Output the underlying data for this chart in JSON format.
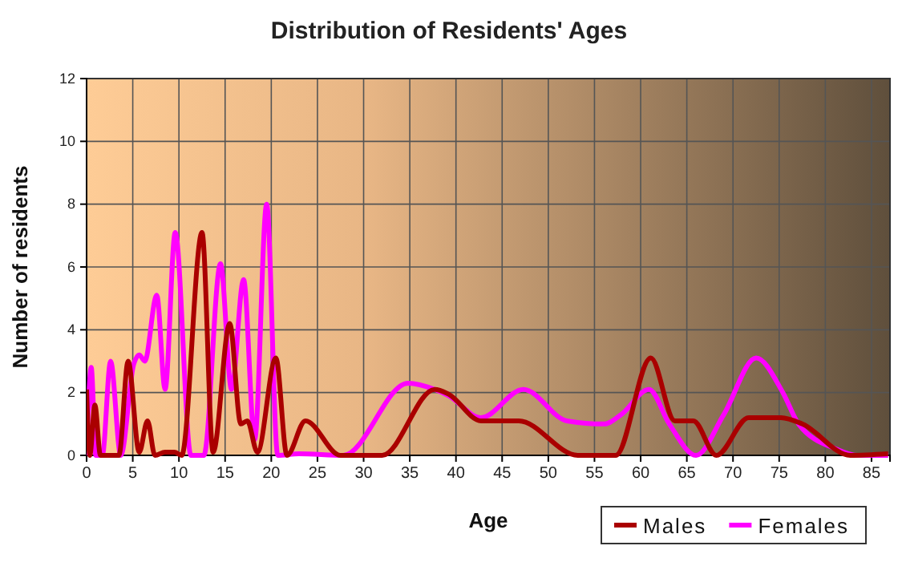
{
  "chart_data": {
    "type": "line",
    "title": "Distribution of Residents' Ages",
    "xlabel": "Age",
    "ylabel": "Number of residents",
    "xlim": [
      0,
      87
    ],
    "xticks": [
      0,
      5,
      10,
      15,
      20,
      25,
      30,
      35,
      40,
      45,
      50,
      55,
      60,
      65,
      70,
      75,
      80,
      85
    ],
    "ylim": [
      0,
      12
    ],
    "yticks": [
      0,
      2,
      4,
      6,
      8,
      10,
      12
    ],
    "grid": true,
    "legend": "bottom right",
    "series": [
      {
        "name": "Males",
        "color": "#aa0000",
        "x": [
          0,
          0.35,
          0.9,
          1.5,
          3.5,
          4.5,
          5.7,
          6.6,
          7.4,
          8.5,
          9.5,
          10.3,
          12.5,
          13.7,
          15.5,
          16.7,
          17.4,
          18.5,
          20.5,
          21.7,
          23.7,
          27.5,
          32,
          37.7,
          39.2,
          42.7,
          46.8,
          53.2,
          57.3,
          61.1,
          63.7,
          65.7,
          68.2,
          71.7,
          75.2,
          77.5,
          82.7,
          86.8
        ],
        "values": [
          2.1,
          0,
          1.6,
          0,
          0,
          3.0,
          0.1,
          1.1,
          0,
          0.1,
          0.1,
          0,
          7.1,
          0.1,
          4.2,
          1.0,
          1.1,
          0.1,
          3.1,
          0,
          1.1,
          0,
          0,
          2.1,
          1.95,
          1.1,
          1.1,
          0,
          0,
          3.1,
          1.1,
          1.1,
          0,
          1.2,
          1.2,
          1.0,
          0,
          0.05
        ]
      },
      {
        "name": "Females",
        "color": "#ff00ff",
        "x": [
          0,
          0.5,
          1,
          1.7,
          2.6,
          3.7,
          5.1,
          5.7,
          6.3,
          7.6,
          8.5,
          9.6,
          11.3,
          12.7,
          14.5,
          15.7,
          17.0,
          18.2,
          19.5,
          20.7,
          23,
          27.8,
          34.8,
          37.7,
          39.2,
          42.7,
          47.3,
          52,
          56.1,
          57.9,
          60.9,
          63.1,
          66,
          69,
          72.5,
          75.4,
          77.1,
          81.2,
          83.5,
          86.8
        ],
        "values": [
          0,
          2.8,
          0,
          0,
          3.0,
          0,
          2.9,
          3.2,
          3.0,
          5.1,
          2.1,
          7.1,
          0,
          0,
          6.1,
          2.1,
          5.6,
          0.5,
          8.0,
          0,
          0.05,
          0,
          2.3,
          2.1,
          1.9,
          1.2,
          2.1,
          1.1,
          1.0,
          1.3,
          2.1,
          1.0,
          0,
          1.3,
          3.1,
          2.0,
          1.0,
          0.2,
          0,
          0
        ]
      }
    ]
  }
}
